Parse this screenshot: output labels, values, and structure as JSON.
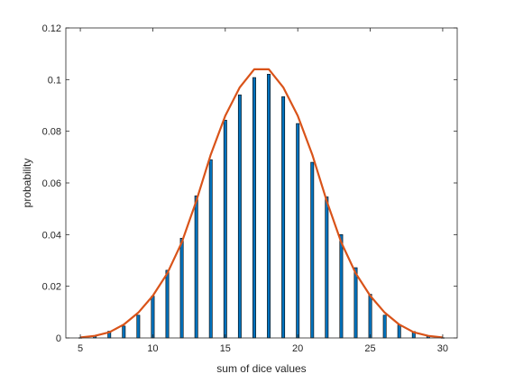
{
  "chart_data": {
    "type": "bar",
    "xlabel": "sum of dice values",
    "ylabel": "probability",
    "xlim": [
      4,
      31
    ],
    "ylim": [
      0,
      0.12
    ],
    "x_ticks": [
      5,
      10,
      15,
      20,
      25,
      30
    ],
    "y_ticks": [
      0,
      0.02,
      0.04,
      0.06,
      0.08,
      0.1,
      0.12
    ],
    "x_tick_labels": [
      "5",
      "10",
      "15",
      "20",
      "25",
      "30"
    ],
    "y_tick_labels": [
      "0",
      "0.02",
      "0.04",
      "0.06",
      "0.08",
      "0.1",
      "0.12"
    ],
    "grid": false,
    "series": [
      {
        "type": "bar",
        "color": "#0072BD",
        "x": [
          5,
          6,
          7,
          8,
          9,
          10,
          11,
          12,
          13,
          14,
          15,
          16,
          17,
          18,
          19,
          20,
          21,
          22,
          23,
          24,
          25,
          26,
          27,
          28,
          29,
          30
        ],
        "values": [
          0.0001,
          0.0008,
          0.0026,
          0.0046,
          0.0088,
          0.0162,
          0.0262,
          0.0386,
          0.055,
          0.069,
          0.0843,
          0.0941,
          0.1008,
          0.1021,
          0.0934,
          0.083,
          0.068,
          0.0546,
          0.04,
          0.0272,
          0.0169,
          0.0088,
          0.005,
          0.0025,
          0.0008,
          0.0001
        ]
      },
      {
        "type": "line",
        "color": "#D95319",
        "x": [
          5,
          6,
          7,
          8,
          9,
          10,
          11,
          12,
          13,
          14,
          15,
          16,
          17,
          18,
          19,
          20,
          21,
          22,
          23,
          24,
          25,
          26,
          27,
          28,
          29,
          30
        ],
        "values": [
          0.0002,
          0.0008,
          0.0022,
          0.0052,
          0.0098,
          0.0163,
          0.025,
          0.037,
          0.053,
          0.071,
          0.086,
          0.097,
          0.104,
          0.104,
          0.097,
          0.086,
          0.071,
          0.053,
          0.037,
          0.025,
          0.0163,
          0.0098,
          0.0052,
          0.0022,
          0.0008,
          0.0002
        ]
      }
    ]
  }
}
